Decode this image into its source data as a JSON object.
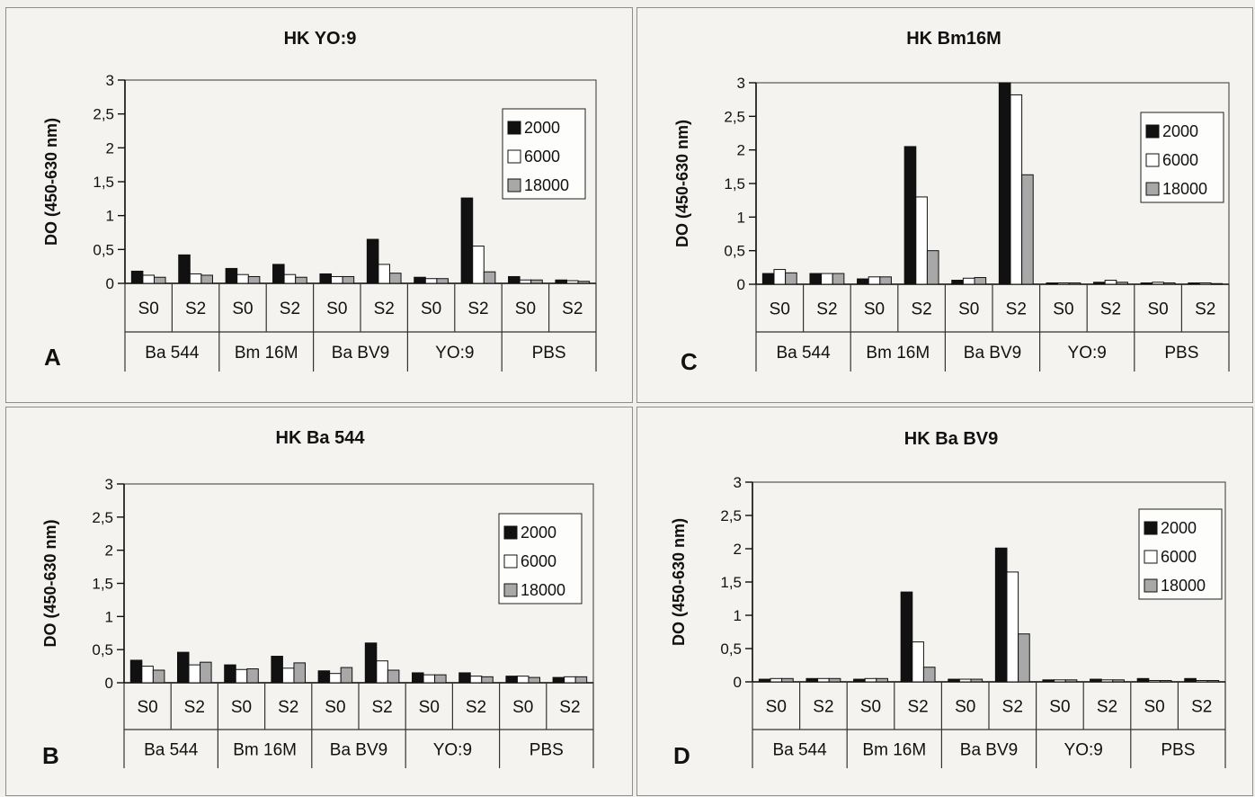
{
  "chart_data": [
    {
      "panel": "A",
      "type": "bar",
      "title": "HK YO:9",
      "ylabel": "DO (450-630 nm)",
      "ylim": [
        0,
        3
      ],
      "yticks": [
        "0",
        "0,5",
        "1",
        "1,5",
        "2",
        "2,5",
        "3"
      ],
      "categories": [
        "S0",
        "S2",
        "S0",
        "S2",
        "S0",
        "S2",
        "S0",
        "S2",
        "S0",
        "S2"
      ],
      "groups": [
        "Ba 544",
        "Bm 16M",
        "Ba BV9",
        "YO:9",
        "PBS"
      ],
      "legend_position": "top-right",
      "series": [
        {
          "name": "2000",
          "color": "#111111",
          "values": [
            0.18,
            0.42,
            0.22,
            0.28,
            0.14,
            0.65,
            0.09,
            1.26,
            0.1,
            0.05
          ]
        },
        {
          "name": "6000",
          "color": "#ffffff",
          "values": [
            0.12,
            0.14,
            0.13,
            0.13,
            0.1,
            0.28,
            0.07,
            0.55,
            0.05,
            0.04
          ]
        },
        {
          "name": "18000",
          "color": "#a8a8a8",
          "values": [
            0.09,
            0.12,
            0.1,
            0.09,
            0.1,
            0.15,
            0.07,
            0.17,
            0.05,
            0.03
          ]
        }
      ]
    },
    {
      "panel": "C",
      "type": "bar",
      "title": "HK Bm16M",
      "ylabel": "DO (450-630 nm)",
      "ylim": [
        0,
        3
      ],
      "yticks": [
        "0",
        "0,5",
        "1",
        "1,5",
        "2",
        "2,5",
        "3"
      ],
      "categories": [
        "S0",
        "S2",
        "S0",
        "S2",
        "S0",
        "S2",
        "S0",
        "S2",
        "S0",
        "S2"
      ],
      "groups": [
        "Ba 544",
        "Bm 16M",
        "Ba BV9",
        "YO:9",
        "PBS"
      ],
      "legend_position": "top-right",
      "series": [
        {
          "name": "2000",
          "color": "#111111",
          "values": [
            0.16,
            0.16,
            0.08,
            2.05,
            0.06,
            3.0,
            0.02,
            0.03,
            0.02,
            0.02
          ]
        },
        {
          "name": "6000",
          "color": "#ffffff",
          "values": [
            0.22,
            0.16,
            0.11,
            1.3,
            0.09,
            2.82,
            0.02,
            0.06,
            0.03,
            0.02
          ]
        },
        {
          "name": "18000",
          "color": "#a8a8a8",
          "values": [
            0.17,
            0.16,
            0.11,
            0.5,
            0.1,
            1.63,
            0.02,
            0.03,
            0.02,
            0.01
          ]
        }
      ]
    },
    {
      "panel": "B",
      "type": "bar",
      "title": "HK Ba 544",
      "ylabel": "DO (450-630 nm)",
      "ylim": [
        0,
        3
      ],
      "yticks": [
        "0",
        "0,5",
        "1",
        "1,5",
        "2",
        "2,5",
        "3"
      ],
      "categories": [
        "S0",
        "S2",
        "S0",
        "S2",
        "S0",
        "S2",
        "S0",
        "S2",
        "S0",
        "S2"
      ],
      "groups": [
        "Ba 544",
        "Bm 16M",
        "Ba BV9",
        "YO:9",
        "PBS"
      ],
      "legend_position": "top-right",
      "series": [
        {
          "name": "2000",
          "color": "#111111",
          "values": [
            0.34,
            0.46,
            0.27,
            0.4,
            0.18,
            0.6,
            0.15,
            0.15,
            0.1,
            0.08
          ]
        },
        {
          "name": "6000",
          "color": "#ffffff",
          "values": [
            0.25,
            0.27,
            0.2,
            0.22,
            0.14,
            0.33,
            0.12,
            0.1,
            0.1,
            0.09
          ]
        },
        {
          "name": "18000",
          "color": "#a8a8a8",
          "values": [
            0.19,
            0.31,
            0.21,
            0.3,
            0.23,
            0.19,
            0.12,
            0.09,
            0.08,
            0.09
          ]
        }
      ]
    },
    {
      "panel": "D",
      "type": "bar",
      "title": "HK Ba BV9",
      "ylabel": "DO (450-630 nm)",
      "ylim": [
        0,
        3
      ],
      "yticks": [
        "0",
        "0,5",
        "1",
        "1,5",
        "2",
        "2,5",
        "3"
      ],
      "categories": [
        "S0",
        "S2",
        "S0",
        "S2",
        "S0",
        "S2",
        "S0",
        "S2",
        "S0",
        "S2"
      ],
      "groups": [
        "Ba 544",
        "Bm 16M",
        "Ba BV9",
        "YO:9",
        "PBS"
      ],
      "legend_position": "top-right",
      "series": [
        {
          "name": "2000",
          "color": "#111111",
          "values": [
            0.04,
            0.05,
            0.04,
            1.35,
            0.04,
            2.01,
            0.03,
            0.04,
            0.05,
            0.05
          ]
        },
        {
          "name": "6000",
          "color": "#ffffff",
          "values": [
            0.05,
            0.05,
            0.05,
            0.6,
            0.04,
            1.65,
            0.03,
            0.03,
            0.02,
            0.02
          ]
        },
        {
          "name": "18000",
          "color": "#a8a8a8",
          "values": [
            0.05,
            0.05,
            0.05,
            0.22,
            0.04,
            0.72,
            0.03,
            0.03,
            0.02,
            0.02
          ]
        }
      ]
    }
  ]
}
